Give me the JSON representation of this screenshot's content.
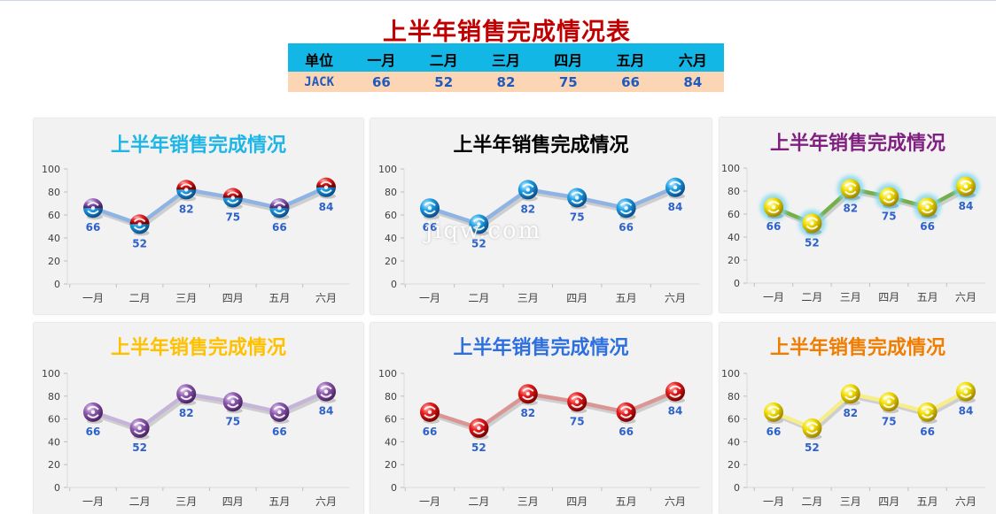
{
  "sheet": {
    "title": "上半年销售完成情况表",
    "table": {
      "header_first": "单位",
      "months": [
        "一月",
        "二月",
        "三月",
        "四月",
        "五月",
        "六月"
      ],
      "row_name": "JACK",
      "values": [
        66,
        52,
        82,
        75,
        66,
        84
      ]
    },
    "watermark": "jiqw.com"
  },
  "chart_data": [
    {
      "type": "line",
      "title": "上半年销售完成情况",
      "title_color": "#1db6e6",
      "line_color": "#8fb4e3",
      "marker_style": "red-blue-ball",
      "categories": [
        "一月",
        "二月",
        "三月",
        "四月",
        "五月",
        "六月"
      ],
      "series": [
        {
          "values": [
            66,
            52,
            82,
            75,
            66,
            84
          ]
        }
      ],
      "ylim": [
        0,
        100
      ],
      "yticks": [
        0,
        20,
        40,
        60,
        80,
        100
      ],
      "data_labels": [
        "66",
        "52",
        "82",
        "75",
        "66",
        "84"
      ]
    },
    {
      "type": "line",
      "title": "上半年销售完成情况",
      "title_color": "#000000",
      "line_color": "#8fb4e3",
      "marker_style": "blue-ball",
      "categories": [
        "一月",
        "二月",
        "三月",
        "四月",
        "五月",
        "六月"
      ],
      "series": [
        {
          "values": [
            66,
            52,
            82,
            75,
            66,
            84
          ]
        }
      ],
      "ylim": [
        0,
        100
      ],
      "yticks": [
        0,
        20,
        40,
        60,
        80,
        100
      ],
      "data_labels": [
        "66",
        "52",
        "82",
        "75",
        "66",
        "84"
      ]
    },
    {
      "type": "line",
      "title": "上半年销售完成情况",
      "title_color": "#7f1f7f",
      "line_color": "#74b04a",
      "marker_style": "yellow-ball-glow",
      "categories": [
        "一月",
        "二月",
        "三月",
        "四月",
        "五月",
        "六月"
      ],
      "series": [
        {
          "values": [
            66,
            52,
            82,
            75,
            66,
            84
          ]
        }
      ],
      "ylim": [
        0,
        100
      ],
      "yticks": [
        0,
        20,
        40,
        60,
        80,
        100
      ],
      "data_labels": [
        "66",
        "52",
        "82",
        "75",
        "66",
        "84"
      ]
    },
    {
      "type": "line",
      "title": "上半年销售完成情况",
      "title_color": "#ffc000",
      "line_color": "#c5b6d9",
      "marker_style": "purple-ball",
      "categories": [
        "一月",
        "二月",
        "三月",
        "四月",
        "五月",
        "六月"
      ],
      "series": [
        {
          "values": [
            66,
            52,
            82,
            75,
            66,
            84
          ]
        }
      ],
      "ylim": [
        0,
        100
      ],
      "yticks": [
        0,
        20,
        40,
        60,
        80,
        100
      ],
      "data_labels": [
        "66",
        "52",
        "82",
        "75",
        "66",
        "84"
      ]
    },
    {
      "type": "line",
      "title": "上半年销售完成情况",
      "title_color": "#2e6fe0",
      "line_color": "#d99694",
      "marker_style": "red-ball",
      "categories": [
        "一月",
        "二月",
        "三月",
        "四月",
        "五月",
        "六月"
      ],
      "series": [
        {
          "values": [
            66,
            52,
            82,
            75,
            66,
            84
          ]
        }
      ],
      "ylim": [
        0,
        100
      ],
      "yticks": [
        0,
        20,
        40,
        60,
        80,
        100
      ],
      "data_labels": [
        "66",
        "52",
        "82",
        "75",
        "66",
        "84"
      ]
    },
    {
      "type": "line",
      "title": "上半年销售完成情况",
      "title_color": "#f07d00",
      "line_color": "#f5ee8a",
      "marker_style": "yellow-ball",
      "categories": [
        "一月",
        "二月",
        "三月",
        "四月",
        "五月",
        "六月"
      ],
      "series": [
        {
          "values": [
            66,
            52,
            82,
            75,
            66,
            84
          ]
        }
      ],
      "ylim": [
        0,
        100
      ],
      "yticks": [
        0,
        20,
        40,
        60,
        80,
        100
      ],
      "data_labels": [
        "66",
        "52",
        "82",
        "75",
        "66",
        "84"
      ]
    }
  ]
}
